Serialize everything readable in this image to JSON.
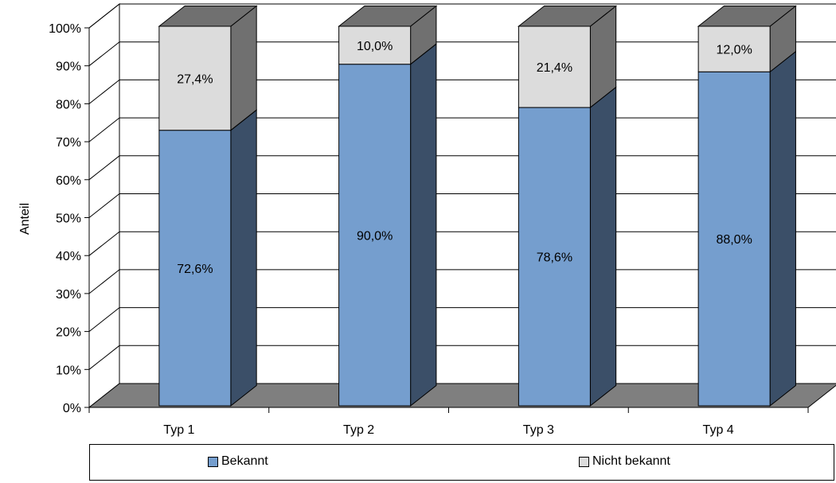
{
  "chart_data": {
    "type": "bar",
    "stacked": true,
    "style": "3d",
    "categories": [
      "Typ 1",
      "Typ 2",
      "Typ 3",
      "Typ 4"
    ],
    "series": [
      {
        "name": "Bekannt",
        "values": [
          72.6,
          90.0,
          78.6,
          88.0
        ],
        "labels": [
          "72,6%",
          "90,0%",
          "78,6%",
          "88,0%"
        ],
        "color": "#759ece",
        "side_color": "#3b4f68"
      },
      {
        "name": "Nicht bekannt",
        "values": [
          27.4,
          10.0,
          21.4,
          12.0
        ],
        "labels": [
          "27,4%",
          "10,0%",
          "21,4%",
          "12,0%"
        ],
        "color": "#dcdcdc",
        "side_color": "#707070"
      }
    ],
    "title": "",
    "xlabel": "",
    "ylabel": "Anteil",
    "ylim": [
      0,
      100
    ],
    "yticks": [
      "0%",
      "10%",
      "20%",
      "30%",
      "40%",
      "50%",
      "60%",
      "70%",
      "80%",
      "90%",
      "100%"
    ],
    "grid": true,
    "legend_position": "bottom",
    "floor_color": "#7f7f7f"
  }
}
